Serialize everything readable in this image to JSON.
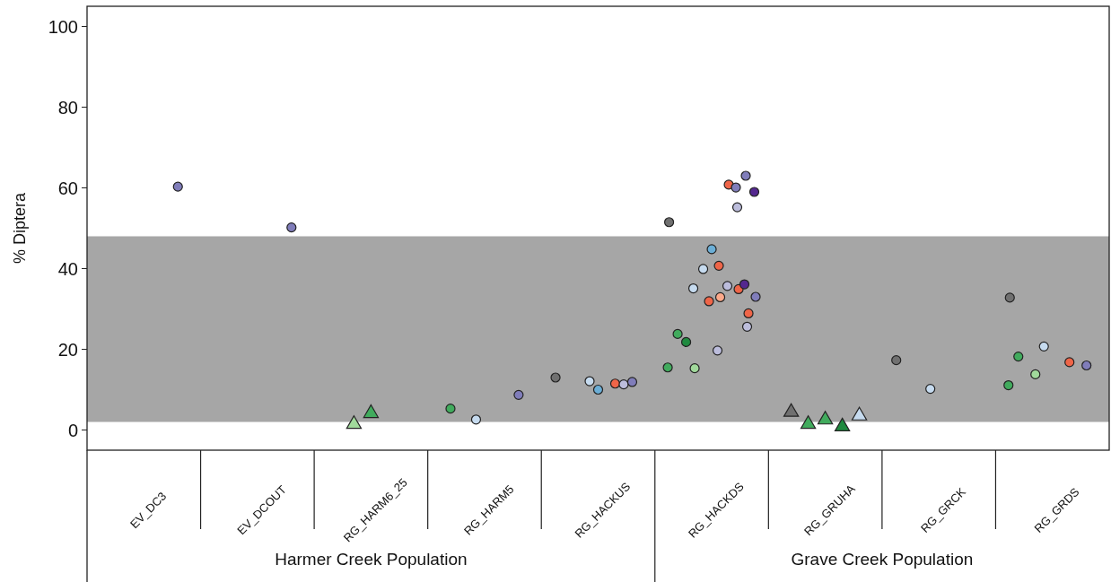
{
  "chart_data": {
    "type": "scatter",
    "ylabel": "% Diptera",
    "categories": [
      "EV_DC3",
      "EV_DCOUT",
      "RG_HARM6_25",
      "RG_HARM5",
      "RG_HACKUS",
      "RG_HACKDS",
      "RG_GRUHA",
      "RG_GRCK",
      "RG_GRDS"
    ],
    "ylim": [
      -5,
      105
    ],
    "yticks": [
      0,
      20,
      40,
      60,
      80,
      100
    ],
    "grid": false,
    "bands": [
      {
        "axis": "y",
        "from": 2,
        "to": 48,
        "color": "#a6a6a6"
      }
    ],
    "annotations": [
      "Harmer Creek Population",
      "Grave Creek Population"
    ],
    "series": [
      {
        "color": "#707070",
        "marker": "circle",
        "x": [
          "RG_HACKUS",
          "RG_HACKDS",
          "RG_GRCK",
          "RG_GRDS"
        ],
        "values": [
          13.0,
          51.5,
          17.3,
          32.8
        ]
      },
      {
        "color": "#41ab5d",
        "marker": "circle",
        "x": [
          "RG_HARM5",
          "RG_HACKDS",
          "RG_HACKDS",
          "RG_GRDS",
          "RG_GRDS"
        ],
        "values": [
          5.3,
          23.8,
          15.5,
          18.2,
          11.1
        ]
      },
      {
        "color": "#1f8a3f",
        "marker": "circle",
        "x": [
          "RG_HACKDS"
        ],
        "values": [
          21.8
        ]
      },
      {
        "color": "#a1d99b",
        "marker": "circle",
        "x": [
          "RG_HACKDS",
          "RG_GRDS"
        ],
        "values": [
          15.3,
          13.8
        ]
      },
      {
        "color": "#c6dbef",
        "marker": "circle",
        "x": [
          "RG_HARM5",
          "RG_HACKUS",
          "RG_HACKDS",
          "RG_HACKDS",
          "RG_GRCK",
          "RG_GRDS"
        ],
        "values": [
          2.6,
          12.1,
          39.9,
          35.1,
          10.2,
          20.7
        ]
      },
      {
        "color": "#6baed6",
        "marker": "circle",
        "x": [
          "RG_HACKUS",
          "RG_HACKDS"
        ],
        "values": [
          10.0,
          44.8
        ]
      },
      {
        "color": "#fca98a",
        "marker": "circle",
        "x": [
          "RG_HACKDS"
        ],
        "values": [
          32.9
        ]
      },
      {
        "color": "#ef6548",
        "marker": "circle",
        "x": [
          "RG_HACKUS",
          "RG_HACKDS",
          "RG_HACKDS",
          "RG_HACKDS",
          "RG_HACKDS",
          "RG_HACKDS",
          "RG_GRDS"
        ],
        "values": [
          11.5,
          60.8,
          40.7,
          34.9,
          31.9,
          28.9,
          16.8
        ]
      },
      {
        "color": "#bcbddc",
        "marker": "circle",
        "x": [
          "RG_HACKUS",
          "RG_HACKDS",
          "RG_HACKDS",
          "RG_HACKDS",
          "RG_HACKDS"
        ],
        "values": [
          11.3,
          55.2,
          35.7,
          25.6,
          19.7
        ]
      },
      {
        "color": "#807dba",
        "marker": "circle",
        "x": [
          "EV_DC3",
          "EV_DCOUT",
          "RG_HARM5",
          "RG_HACKUS",
          "RG_HACKDS",
          "RG_HACKDS",
          "RG_HACKDS",
          "RG_GRDS"
        ],
        "values": [
          60.3,
          50.2,
          8.7,
          11.9,
          63.0,
          60.1,
          33.0,
          16.0
        ]
      },
      {
        "color": "#54278f",
        "marker": "circle",
        "x": [
          "RG_HACKDS",
          "RG_HACKDS"
        ],
        "values": [
          59.0,
          36.1
        ]
      },
      {
        "color": "#707070",
        "marker": "triangle",
        "x": [
          "RG_GRUHA"
        ],
        "values": [
          4.1
        ]
      },
      {
        "color": "#a1d99b",
        "marker": "triangle",
        "x": [
          "RG_HARM6_25"
        ],
        "values": [
          1.1
        ]
      },
      {
        "color": "#41ab5d",
        "marker": "triangle",
        "x": [
          "RG_HARM6_25",
          "RG_GRUHA",
          "RG_GRUHA"
        ],
        "values": [
          3.8,
          2.2,
          1.1
        ]
      },
      {
        "color": "#1f8a3f",
        "marker": "triangle",
        "x": [
          "RG_GRUHA"
        ],
        "values": [
          0.5
        ]
      },
      {
        "color": "#c6dbef",
        "marker": "triangle",
        "x": [
          "RG_GRUHA"
        ],
        "values": [
          3.2
        ]
      }
    ]
  }
}
